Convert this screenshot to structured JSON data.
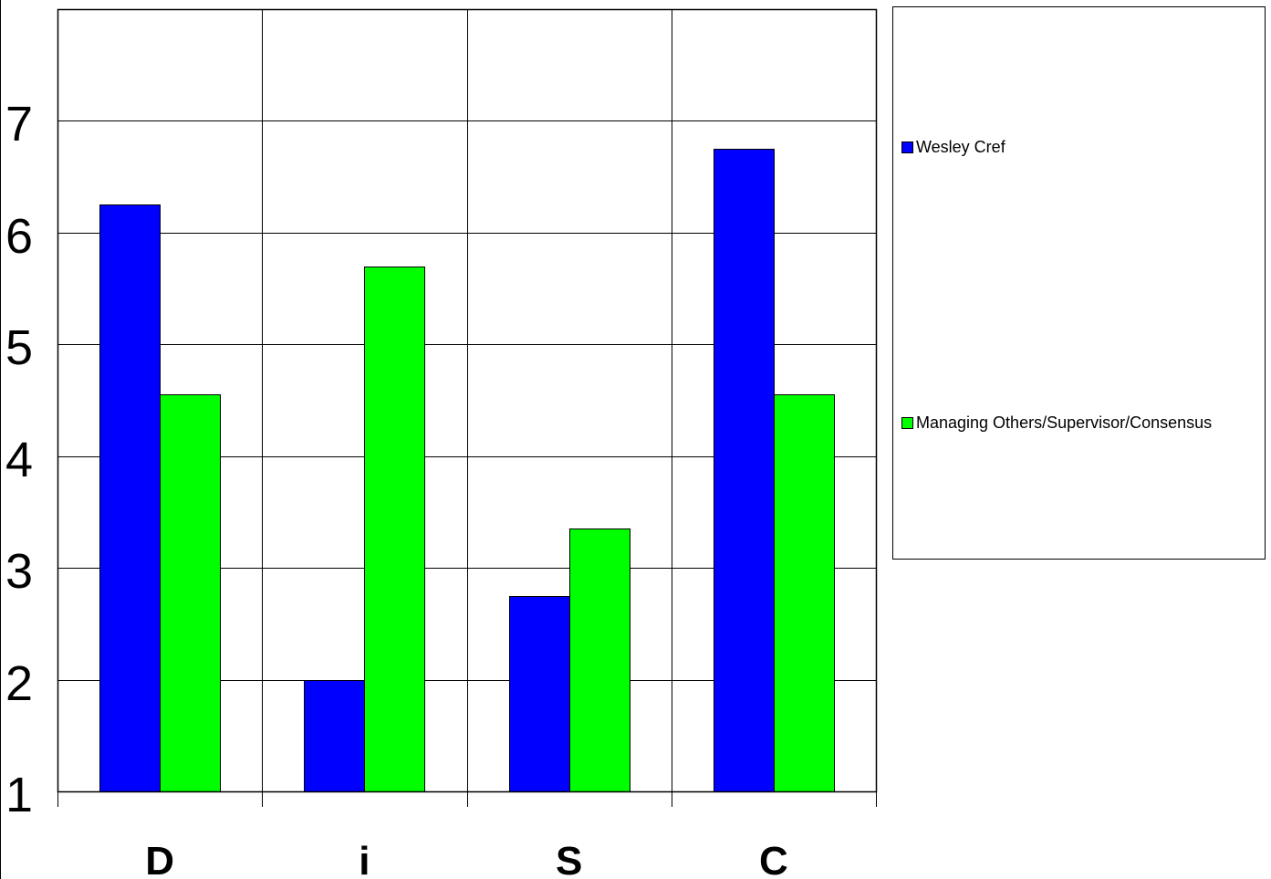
{
  "chart_data": {
    "type": "bar",
    "categories": [
      "D",
      "i",
      "S",
      "C"
    ],
    "series": [
      {
        "name": "Wesley Cref",
        "color": "#0000ff",
        "values": [
          6.25,
          2.0,
          2.75,
          6.75
        ]
      },
      {
        "name": "Managing Others/Supervisor/Consensus",
        "color": "#00ff00",
        "values": [
          4.55,
          5.7,
          3.35,
          4.55
        ]
      }
    ],
    "yticks": [
      1,
      2,
      3,
      4,
      5,
      6,
      7
    ],
    "ylim": [
      1,
      8
    ],
    "grid": true,
    "legend_position": "right"
  }
}
